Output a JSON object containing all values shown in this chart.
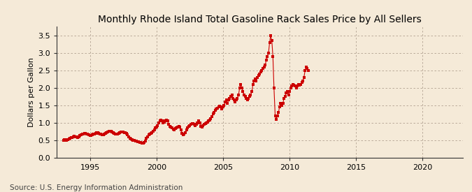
{
  "title": "Monthly Rhode Island Total Gasoline Rack Sales Price by All Sellers",
  "ylabel": "Dollars per Gallon",
  "source": "Source: U.S. Energy Information Administration",
  "background_color": "#f5ead8",
  "plot_bg_color": "#f5ead8",
  "marker_color": "#cc0000",
  "line_color": "#cc0000",
  "grid_color": "#b0a090",
  "spine_color": "#333333",
  "ylim": [
    0.0,
    3.75
  ],
  "yticks": [
    0.0,
    0.5,
    1.0,
    1.5,
    2.0,
    2.5,
    3.0,
    3.5
  ],
  "xlim_start": 1992.5,
  "xlim_end": 2023.0,
  "xticks": [
    1995,
    2000,
    2005,
    2010,
    2015,
    2020
  ],
  "title_fontsize": 10,
  "axis_fontsize": 8,
  "source_fontsize": 7.5,
  "data": [
    [
      1993.0,
      0.5
    ],
    [
      1993.08,
      0.51
    ],
    [
      1993.17,
      0.52
    ],
    [
      1993.25,
      0.5
    ],
    [
      1993.33,
      0.51
    ],
    [
      1993.42,
      0.53
    ],
    [
      1993.5,
      0.55
    ],
    [
      1993.58,
      0.57
    ],
    [
      1993.67,
      0.58
    ],
    [
      1993.75,
      0.6
    ],
    [
      1993.83,
      0.62
    ],
    [
      1993.92,
      0.6
    ],
    [
      1994.0,
      0.59
    ],
    [
      1994.08,
      0.58
    ],
    [
      1994.17,
      0.6
    ],
    [
      1994.25,
      0.63
    ],
    [
      1994.33,
      0.65
    ],
    [
      1994.42,
      0.67
    ],
    [
      1994.5,
      0.68
    ],
    [
      1994.58,
      0.7
    ],
    [
      1994.67,
      0.69
    ],
    [
      1994.75,
      0.68
    ],
    [
      1994.83,
      0.67
    ],
    [
      1994.92,
      0.65
    ],
    [
      1995.0,
      0.63
    ],
    [
      1995.08,
      0.64
    ],
    [
      1995.17,
      0.65
    ],
    [
      1995.25,
      0.67
    ],
    [
      1995.33,
      0.68
    ],
    [
      1995.42,
      0.7
    ],
    [
      1995.5,
      0.72
    ],
    [
      1995.58,
      0.71
    ],
    [
      1995.67,
      0.7
    ],
    [
      1995.75,
      0.68
    ],
    [
      1995.83,
      0.67
    ],
    [
      1995.92,
      0.65
    ],
    [
      1996.0,
      0.65
    ],
    [
      1996.08,
      0.67
    ],
    [
      1996.17,
      0.7
    ],
    [
      1996.25,
      0.72
    ],
    [
      1996.33,
      0.74
    ],
    [
      1996.42,
      0.75
    ],
    [
      1996.5,
      0.76
    ],
    [
      1996.58,
      0.75
    ],
    [
      1996.67,
      0.73
    ],
    [
      1996.75,
      0.72
    ],
    [
      1996.83,
      0.7
    ],
    [
      1996.92,
      0.68
    ],
    [
      1997.0,
      0.67
    ],
    [
      1997.08,
      0.68
    ],
    [
      1997.17,
      0.7
    ],
    [
      1997.25,
      0.72
    ],
    [
      1997.33,
      0.73
    ],
    [
      1997.42,
      0.74
    ],
    [
      1997.5,
      0.73
    ],
    [
      1997.58,
      0.72
    ],
    [
      1997.67,
      0.71
    ],
    [
      1997.75,
      0.69
    ],
    [
      1997.83,
      0.65
    ],
    [
      1997.92,
      0.6
    ],
    [
      1998.0,
      0.55
    ],
    [
      1998.08,
      0.53
    ],
    [
      1998.17,
      0.51
    ],
    [
      1998.25,
      0.5
    ],
    [
      1998.33,
      0.49
    ],
    [
      1998.42,
      0.48
    ],
    [
      1998.5,
      0.47
    ],
    [
      1998.58,
      0.46
    ],
    [
      1998.67,
      0.45
    ],
    [
      1998.75,
      0.44
    ],
    [
      1998.83,
      0.43
    ],
    [
      1998.92,
      0.42
    ],
    [
      1999.0,
      0.42
    ],
    [
      1999.08,
      0.44
    ],
    [
      1999.17,
      0.48
    ],
    [
      1999.25,
      0.55
    ],
    [
      1999.33,
      0.6
    ],
    [
      1999.42,
      0.65
    ],
    [
      1999.5,
      0.68
    ],
    [
      1999.58,
      0.7
    ],
    [
      1999.67,
      0.72
    ],
    [
      1999.75,
      0.75
    ],
    [
      1999.83,
      0.8
    ],
    [
      1999.92,
      0.85
    ],
    [
      2000.0,
      0.88
    ],
    [
      2000.08,
      0.92
    ],
    [
      2000.17,
      1.0
    ],
    [
      2000.25,
      1.05
    ],
    [
      2000.33,
      1.08
    ],
    [
      2000.42,
      1.05
    ],
    [
      2000.5,
      1.0
    ],
    [
      2000.58,
      1.02
    ],
    [
      2000.67,
      1.05
    ],
    [
      2000.75,
      1.08
    ],
    [
      2000.83,
      1.05
    ],
    [
      2000.92,
      0.95
    ],
    [
      2001.0,
      0.9
    ],
    [
      2001.08,
      0.88
    ],
    [
      2001.17,
      0.85
    ],
    [
      2001.25,
      0.82
    ],
    [
      2001.33,
      0.8
    ],
    [
      2001.42,
      0.83
    ],
    [
      2001.5,
      0.85
    ],
    [
      2001.58,
      0.88
    ],
    [
      2001.67,
      0.9
    ],
    [
      2001.75,
      0.88
    ],
    [
      2001.83,
      0.8
    ],
    [
      2001.92,
      0.7
    ],
    [
      2002.0,
      0.65
    ],
    [
      2002.08,
      0.68
    ],
    [
      2002.17,
      0.72
    ],
    [
      2002.25,
      0.8
    ],
    [
      2002.33,
      0.85
    ],
    [
      2002.42,
      0.9
    ],
    [
      2002.5,
      0.92
    ],
    [
      2002.58,
      0.95
    ],
    [
      2002.67,
      0.97
    ],
    [
      2002.75,
      0.98
    ],
    [
      2002.83,
      0.95
    ],
    [
      2002.92,
      0.92
    ],
    [
      2003.0,
      0.95
    ],
    [
      2003.08,
      1.0
    ],
    [
      2003.17,
      1.05
    ],
    [
      2003.25,
      1.0
    ],
    [
      2003.33,
      0.9
    ],
    [
      2003.42,
      0.88
    ],
    [
      2003.5,
      0.92
    ],
    [
      2003.58,
      0.95
    ],
    [
      2003.67,
      0.98
    ],
    [
      2003.75,
      1.0
    ],
    [
      2003.83,
      1.02
    ],
    [
      2003.92,
      1.05
    ],
    [
      2004.0,
      1.08
    ],
    [
      2004.08,
      1.12
    ],
    [
      2004.17,
      1.18
    ],
    [
      2004.25,
      1.25
    ],
    [
      2004.33,
      1.3
    ],
    [
      2004.42,
      1.35
    ],
    [
      2004.5,
      1.4
    ],
    [
      2004.58,
      1.42
    ],
    [
      2004.67,
      1.45
    ],
    [
      2004.75,
      1.48
    ],
    [
      2004.83,
      1.45
    ],
    [
      2004.92,
      1.4
    ],
    [
      2005.0,
      1.45
    ],
    [
      2005.08,
      1.5
    ],
    [
      2005.17,
      1.6
    ],
    [
      2005.25,
      1.65
    ],
    [
      2005.33,
      1.55
    ],
    [
      2005.42,
      1.65
    ],
    [
      2005.5,
      1.7
    ],
    [
      2005.58,
      1.75
    ],
    [
      2005.67,
      1.8
    ],
    [
      2005.75,
      1.7
    ],
    [
      2005.83,
      1.65
    ],
    [
      2005.92,
      1.6
    ],
    [
      2006.0,
      1.65
    ],
    [
      2006.08,
      1.7
    ],
    [
      2006.17,
      1.8
    ],
    [
      2006.25,
      2.0
    ],
    [
      2006.33,
      2.1
    ],
    [
      2006.42,
      2.0
    ],
    [
      2006.5,
      1.9
    ],
    [
      2006.58,
      1.8
    ],
    [
      2006.67,
      1.75
    ],
    [
      2006.75,
      1.7
    ],
    [
      2006.83,
      1.65
    ],
    [
      2006.92,
      1.7
    ],
    [
      2007.0,
      1.75
    ],
    [
      2007.08,
      1.8
    ],
    [
      2007.17,
      1.9
    ],
    [
      2007.25,
      2.1
    ],
    [
      2007.33,
      2.2
    ],
    [
      2007.42,
      2.25
    ],
    [
      2007.5,
      2.2
    ],
    [
      2007.58,
      2.3
    ],
    [
      2007.67,
      2.35
    ],
    [
      2007.75,
      2.4
    ],
    [
      2007.83,
      2.45
    ],
    [
      2007.92,
      2.5
    ],
    [
      2008.0,
      2.55
    ],
    [
      2008.08,
      2.6
    ],
    [
      2008.17,
      2.65
    ],
    [
      2008.25,
      2.8
    ],
    [
      2008.33,
      2.9
    ],
    [
      2008.42,
      3.0
    ],
    [
      2008.5,
      3.3
    ],
    [
      2008.58,
      3.5
    ],
    [
      2008.67,
      3.35
    ],
    [
      2008.75,
      2.9
    ],
    [
      2008.83,
      2.0
    ],
    [
      2008.92,
      1.2
    ],
    [
      2009.0,
      1.1
    ],
    [
      2009.08,
      1.2
    ],
    [
      2009.17,
      1.3
    ],
    [
      2009.25,
      1.45
    ],
    [
      2009.33,
      1.55
    ],
    [
      2009.42,
      1.5
    ],
    [
      2009.5,
      1.55
    ],
    [
      2009.58,
      1.7
    ],
    [
      2009.67,
      1.75
    ],
    [
      2009.75,
      1.85
    ],
    [
      2009.83,
      1.9
    ],
    [
      2009.92,
      1.8
    ],
    [
      2010.0,
      1.9
    ],
    [
      2010.08,
      2.0
    ],
    [
      2010.17,
      2.05
    ],
    [
      2010.25,
      2.1
    ],
    [
      2010.33,
      2.08
    ],
    [
      2010.42,
      2.05
    ],
    [
      2010.5,
      2.0
    ],
    [
      2010.58,
      2.05
    ],
    [
      2010.67,
      2.1
    ],
    [
      2010.75,
      2.08
    ],
    [
      2010.83,
      2.1
    ],
    [
      2010.92,
      2.15
    ],
    [
      2011.0,
      2.2
    ],
    [
      2011.08,
      2.3
    ],
    [
      2011.17,
      2.5
    ],
    [
      2011.25,
      2.6
    ],
    [
      2011.33,
      2.55
    ],
    [
      2011.42,
      2.5
    ]
  ]
}
